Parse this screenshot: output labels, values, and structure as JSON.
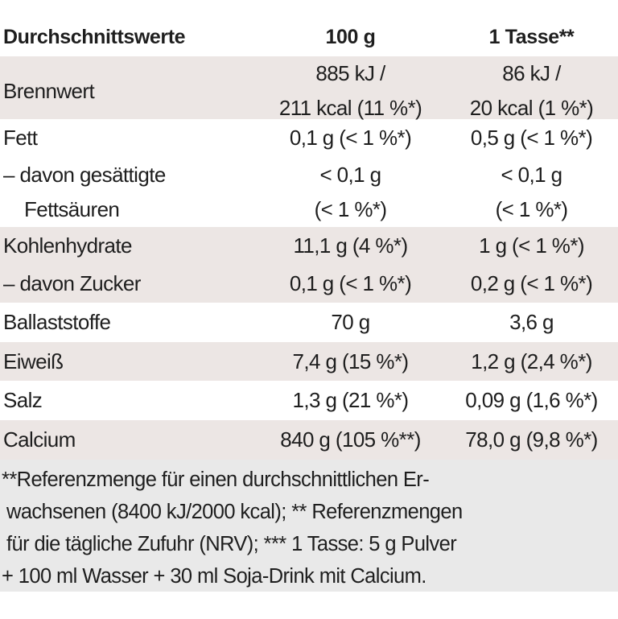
{
  "header": {
    "label": "Durchschnittswerte",
    "col1": "100 g",
    "col2": "1 Tasse**"
  },
  "rows": [
    {
      "label": [
        "Brennwert"
      ],
      "v100": [
        "885 kJ /",
        "211 kcal (11 %*)"
      ],
      "vcup": [
        "86 kJ /",
        "20 kcal (1 %*)"
      ],
      "shaded": true
    },
    {
      "label": [
        "Fett"
      ],
      "v100": [
        "0,1 g (< 1 %*)"
      ],
      "vcup": [
        "0,5 g (< 1 %*)"
      ],
      "shaded": false
    },
    {
      "label": [
        "– davon gesättigte",
        "Fettsäuren"
      ],
      "v100": [
        "< 0,1 g",
        "(< 1 %*)"
      ],
      "vcup": [
        "< 0,1 g",
        "(< 1 %*)"
      ],
      "shaded": false
    },
    {
      "label": [
        "Kohlenhydrate"
      ],
      "v100": [
        "11,1 g (4 %*)"
      ],
      "vcup": [
        "1 g (< 1 %*)"
      ],
      "shaded": true
    },
    {
      "label": [
        "– davon Zucker"
      ],
      "v100": [
        "0,1 g (< 1 %*)"
      ],
      "vcup": [
        "0,2 g (< 1 %*)"
      ],
      "shaded": true
    },
    {
      "label": [
        "Ballaststoffe"
      ],
      "v100": [
        "70 g"
      ],
      "vcup": [
        "3,6 g"
      ],
      "shaded": false
    },
    {
      "label": [
        "Eiweiß"
      ],
      "v100": [
        "7,4 g (15 %*)"
      ],
      "vcup": [
        "1,2 g (2,4 %*)"
      ],
      "shaded": true
    },
    {
      "label": [
        "Salz"
      ],
      "v100": [
        "1,3 g (21 %*)"
      ],
      "vcup": [
        "0,09 g (1,6 %*)"
      ],
      "shaded": false
    },
    {
      "label": [
        "Calcium"
      ],
      "v100": [
        "840 g (105 %**)"
      ],
      "vcup": [
        "78,0 g (9,8 %*)"
      ],
      "shaded": true
    }
  ],
  "footnote": [
    "**Referenzmenge für einen durchschnittlichen Er-",
    "wachsenen (8400 kJ/2000 kcal); ** Referenzmengen",
    "für die tägliche Zufuhr (NRV); *** 1 Tasse: 5 g Pulver",
    "+ 100 ml Wasser + 30 ml Soja-Drink mit Calcium."
  ],
  "colors": {
    "row_shade": "#ece6e4",
    "footnote_bg": "#e9e9e9",
    "text": "#1e1e1e"
  }
}
